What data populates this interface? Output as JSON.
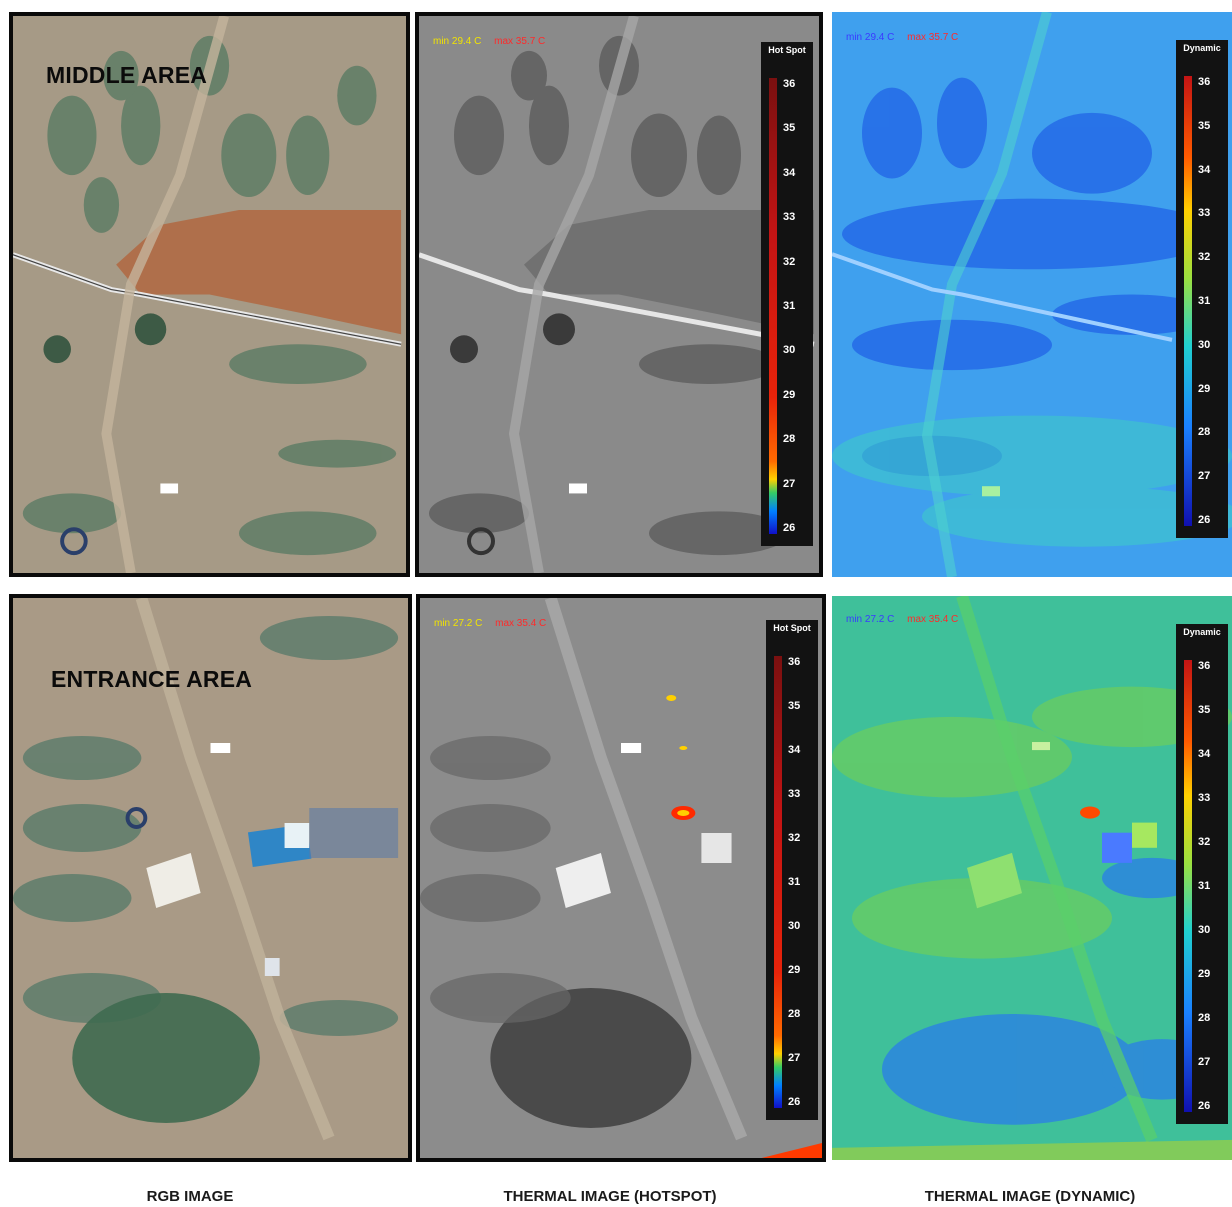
{
  "labels": {
    "middle_area": "MIDDLE AREA",
    "entrance_area": "ENTRANCE AREA"
  },
  "captions": {
    "rgb": "RGB IMAGE",
    "hotspot": "THERMAL IMAGE (HOTSPOT)",
    "dynamic": "THERMAL IMAGE (DYNAMIC)"
  },
  "readouts": {
    "top_hotspot": {
      "min": "min 29.4 C",
      "max": "max 35.7 C"
    },
    "top_dynamic": {
      "min": "min 29.4 C",
      "max": "max 35.7 C"
    },
    "bottom_hotspot": {
      "min": "min 27.2 C",
      "max": "max 35.4 C"
    },
    "bottom_dynamic": {
      "min": "min 27.2 C",
      "max": "max 35.4 C"
    }
  },
  "scales": {
    "hotspot_title": "Hot Spot",
    "dynamic_title": "Dynamic",
    "ticks": [
      "36",
      "35",
      "34",
      "33",
      "32",
      "31",
      "30",
      "29",
      "28",
      "27",
      "26"
    ]
  },
  "colors": {
    "readout_min_hotspot": "#f2e400",
    "readout_max_hotspot": "#ff2a2a",
    "readout_min_dynamic": "#3a3aff",
    "readout_max_dynamic": "#ff2a2a"
  }
}
